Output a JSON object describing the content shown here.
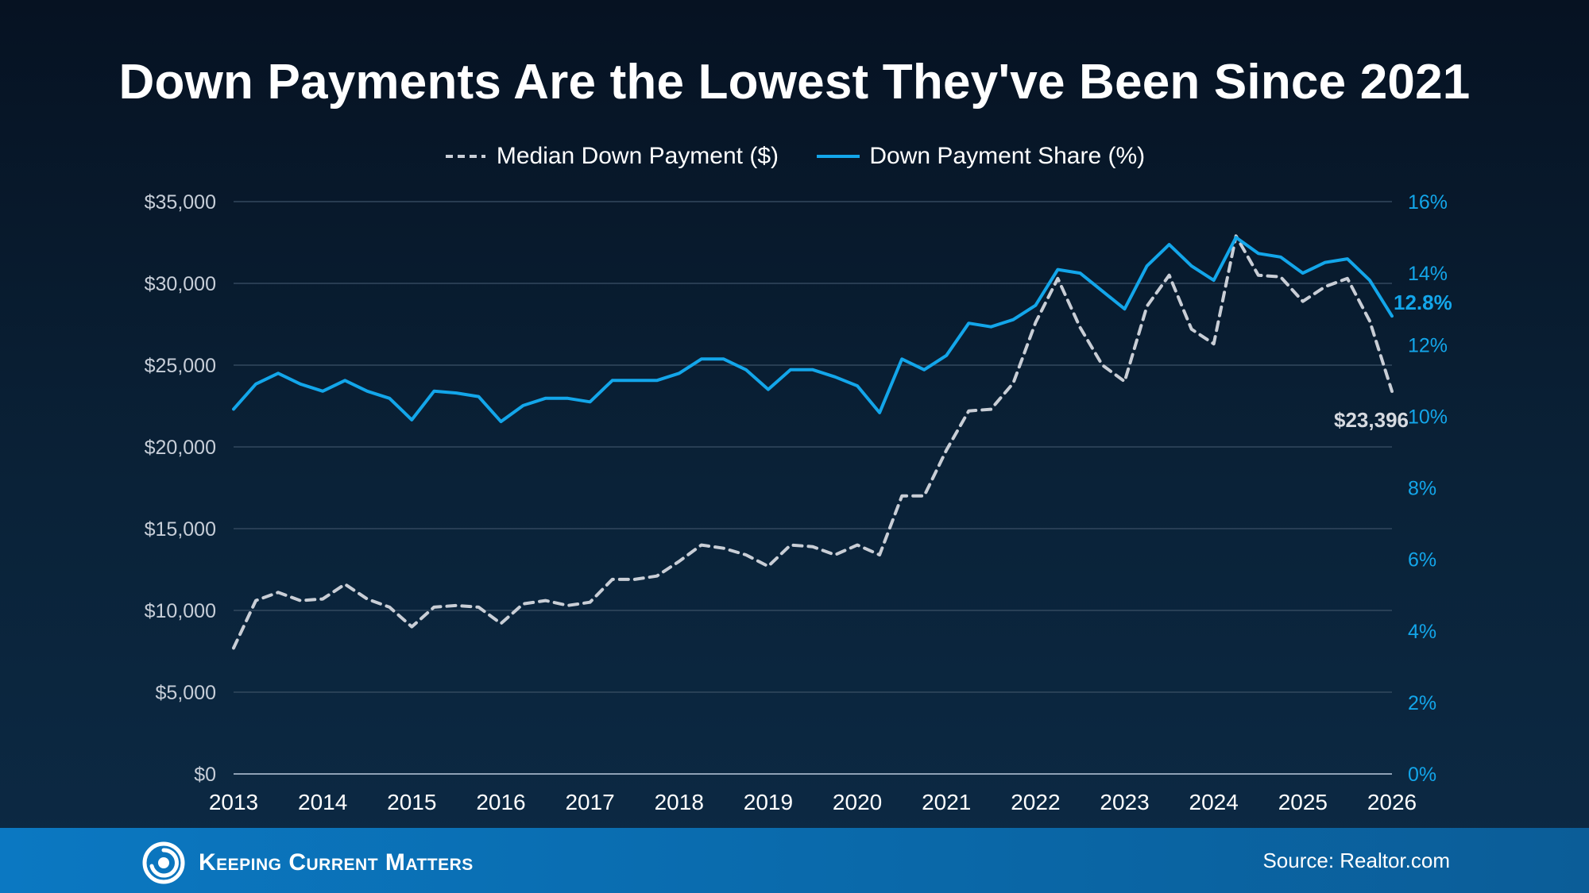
{
  "footer": {
    "brand": "Keeping Current Matters",
    "source": "Source: Realtor.com"
  },
  "chart_data": {
    "type": "line",
    "title": "Down Payments Are the Lowest They've Been Since 2021",
    "legend_position": "top-center",
    "grid": true,
    "x_tick_labels": [
      "2013",
      "2014",
      "2015",
      "2016",
      "2017",
      "2018",
      "2019",
      "2020",
      "2021",
      "2022",
      "2023",
      "2024",
      "2025",
      "2026"
    ],
    "xlim": [
      2013,
      2026
    ],
    "y_left": {
      "ticks": [
        "$0",
        "$5,000",
        "$10,000",
        "$15,000",
        "$20,000",
        "$25,000",
        "$30,000",
        "$35,000"
      ],
      "ylim": [
        0,
        35000
      ]
    },
    "y_right": {
      "ticks": [
        "0%",
        "2%",
        "4%",
        "6%",
        "8%",
        "10%",
        "12%",
        "14%",
        "16%"
      ],
      "ylim": [
        0,
        16
      ]
    },
    "x": [
      2013.0,
      2013.25,
      2013.5,
      2013.75,
      2014.0,
      2014.25,
      2014.5,
      2014.75,
      2015.0,
      2015.25,
      2015.5,
      2015.75,
      2016.0,
      2016.25,
      2016.5,
      2016.75,
      2017.0,
      2017.25,
      2017.5,
      2017.75,
      2018.0,
      2018.25,
      2018.5,
      2018.75,
      2019.0,
      2019.25,
      2019.5,
      2019.75,
      2020.0,
      2020.25,
      2020.5,
      2020.75,
      2021.0,
      2021.25,
      2021.5,
      2021.75,
      2022.0,
      2022.25,
      2022.5,
      2022.75,
      2023.0,
      2023.25,
      2023.5,
      2023.75,
      2024.0,
      2024.25,
      2024.5,
      2024.75,
      2025.0,
      2025.25,
      2025.5,
      2025.75,
      2026.0
    ],
    "series": [
      {
        "name": "Median Down Payment ($)",
        "axis": "left",
        "style": "dashed",
        "color": "#c9ced6",
        "values": [
          7700,
          10600,
          11100,
          10600,
          10700,
          11600,
          10700,
          10200,
          9000,
          10200,
          10300,
          10200,
          9200,
          10400,
          10600,
          10300,
          10500,
          11900,
          11900,
          12100,
          13000,
          14000,
          13800,
          13400,
          12700,
          14000,
          13900,
          13400,
          14000,
          13400,
          17000,
          17000,
          19800,
          22200,
          22300,
          23900,
          27600,
          30300,
          27300,
          25000,
          24000,
          28600,
          30500,
          27200,
          26300,
          32900,
          30500,
          30400,
          28900,
          29800,
          30300,
          27700,
          23396
        ]
      },
      {
        "name": "Down Payment Share (%)",
        "axis": "right",
        "style": "solid",
        "color": "#13a6ea",
        "values": [
          10.2,
          10.9,
          11.2,
          10.9,
          10.7,
          11.0,
          10.7,
          10.5,
          9.9,
          10.7,
          10.65,
          10.55,
          9.85,
          10.3,
          10.5,
          10.5,
          10.4,
          11.0,
          11.0,
          11.0,
          11.2,
          11.6,
          11.6,
          11.3,
          10.75,
          11.3,
          11.3,
          11.1,
          10.85,
          10.1,
          11.6,
          11.3,
          11.7,
          12.6,
          12.5,
          12.7,
          13.1,
          14.1,
          14.0,
          13.5,
          13.0,
          14.2,
          14.8,
          14.2,
          13.8,
          15.0,
          14.55,
          14.45,
          14.0,
          14.3,
          14.4,
          13.8,
          12.8
        ]
      }
    ],
    "annotations": [
      {
        "series": "Median Down Payment ($)",
        "label": "$23,396"
      },
      {
        "series": "Down Payment Share (%)",
        "label": "12.8%"
      }
    ]
  }
}
